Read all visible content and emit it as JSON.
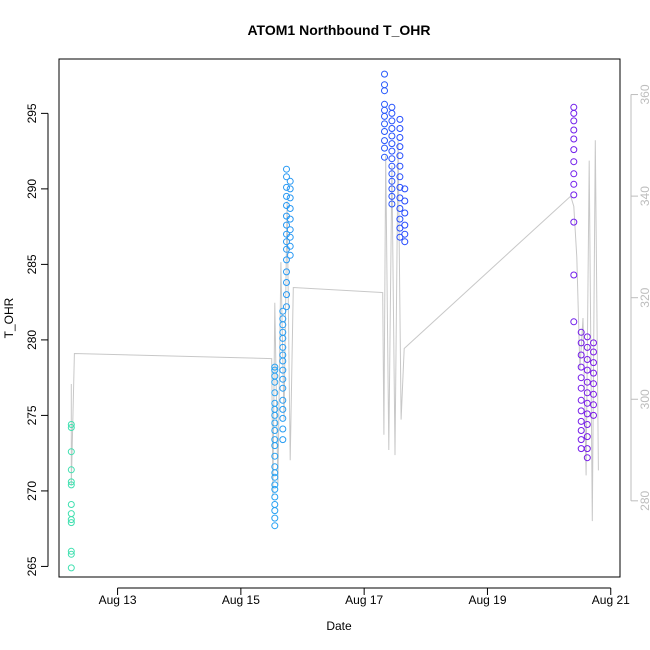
{
  "chart_data": {
    "type": "scatter",
    "title": "ATOM1 Northbound T_OHR",
    "xlabel": "Date",
    "ylabel": "T_OHR",
    "x_unit": "days (August)",
    "xlim": [
      12.05,
      21.15
    ],
    "ylim": [
      264.3,
      298.6
    ],
    "y2lim": [
      265,
      367
    ],
    "x_ticks": [
      13,
      15,
      17,
      19,
      21
    ],
    "x_tick_labels": [
      "Aug 13",
      "Aug 15",
      "Aug 17",
      "Aug 19",
      "Aug 21"
    ],
    "y_ticks": [
      265,
      270,
      275,
      280,
      285,
      290,
      295
    ],
    "y2_ticks": [
      280,
      300,
      320,
      340,
      360
    ],
    "point_color_gradient": [
      "#40e0b0",
      "#29b6f0",
      "#2540ff",
      "#7b1ae8"
    ],
    "line_color": "#c8c8c8",
    "grid": false,
    "legend": "none",
    "secondary_axis": "right, grey, no label",
    "series": [
      {
        "kind": "points",
        "axis": "left",
        "clusters": [
          {
            "x": 12.25,
            "values": [
              274.4,
              274.2,
              272.6,
              271.4,
              270.6,
              270.4,
              269.1,
              268.5,
              268.1,
              267.9,
              266.0,
              265.8,
              264.9
            ]
          },
          {
            "x": 15.55,
            "values": [
              278.2,
              278.0,
              277.6,
              277.2,
              276.5,
              275.8,
              275.4,
              275.0,
              274.5,
              274.0,
              273.4,
              273.0,
              272.3,
              271.6,
              271.2,
              270.9,
              270.4,
              270.1,
              269.6,
              269.1,
              268.7,
              268.2,
              267.7
            ]
          },
          {
            "x": 15.68,
            "values": [
              281.9,
              281.4,
              281.0,
              280.5,
              280.1,
              279.5,
              279.0,
              278.6,
              278.0,
              277.4,
              276.8,
              276.0,
              275.4,
              274.8,
              274.1,
              273.4
            ]
          },
          {
            "x": 15.74,
            "values": [
              291.3,
              290.8,
              290.1,
              289.5,
              288.9,
              288.2,
              287.6,
              287.0,
              286.5,
              286.0,
              285.3,
              284.5,
              283.8,
              283.0,
              282.2
            ]
          },
          {
            "x": 15.8,
            "values": [
              290.5,
              290.0,
              289.4,
              288.7,
              288.0,
              287.3,
              286.8,
              286.2,
              285.6
            ]
          },
          {
            "x": 17.33,
            "values": [
              297.6,
              296.9,
              296.5,
              295.6,
              295.2,
              294.8,
              294.3,
              293.8,
              293.2,
              292.7,
              292.1
            ]
          },
          {
            "x": 17.45,
            "values": [
              295.4,
              295.0,
              294.5,
              294.0,
              293.5,
              293.0,
              292.5,
              292.0,
              291.5,
              291.0,
              290.5,
              290.0,
              289.5,
              289.0
            ]
          },
          {
            "x": 17.58,
            "values": [
              294.6,
              294.0,
              293.4,
              292.8,
              292.2,
              291.5,
              290.8,
              290.1,
              289.4,
              288.7,
              288.0,
              287.4,
              286.8
            ]
          },
          {
            "x": 17.66,
            "values": [
              290.0,
              289.2,
              288.4,
              287.6,
              287.0,
              286.5
            ]
          },
          {
            "x": 20.4,
            "values": [
              295.4,
              295.0,
              294.5,
              293.9,
              293.3,
              292.6,
              291.8,
              291.0,
              290.3,
              289.6,
              287.8,
              284.3,
              281.2
            ]
          },
          {
            "x": 20.52,
            "values": [
              280.5,
              279.8,
              279.0,
              278.2,
              277.5,
              276.8,
              276.0,
              275.3,
              274.6,
              274.0,
              273.4,
              272.8
            ]
          },
          {
            "x": 20.62,
            "values": [
              280.2,
              279.5,
              278.7,
              278.0,
              277.2,
              276.5,
              275.8,
              275.1,
              274.4,
              273.6,
              272.8,
              272.2
            ]
          },
          {
            "x": 20.72,
            "values": [
              279.8,
              279.2,
              278.5,
              277.8,
              277.1,
              276.4,
              275.7,
              275.0
            ]
          }
        ]
      },
      {
        "kind": "line",
        "axis": "right",
        "x": [
          12.25,
          12.25,
          12.25,
          12.25,
          12.3,
          15.5,
          15.52,
          15.55,
          15.6,
          15.65,
          15.7,
          15.75,
          15.8,
          15.85,
          17.3,
          17.32,
          17.35,
          17.4,
          17.45,
          17.5,
          17.55,
          17.6,
          17.65,
          20.35,
          20.4,
          20.45,
          20.5,
          20.55,
          20.6,
          20.65,
          20.7,
          20.75,
          20.8
        ],
        "values": [
          303,
          286,
          299,
          283,
          309,
          308,
          281,
          319,
          283,
          327,
          296,
          339,
          288,
          322,
          321,
          293,
          348,
          290,
          346,
          289,
          351,
          296,
          310,
          340,
          338,
          328,
          306,
          316,
          285,
          347,
          276,
          351,
          286
        ]
      }
    ]
  }
}
